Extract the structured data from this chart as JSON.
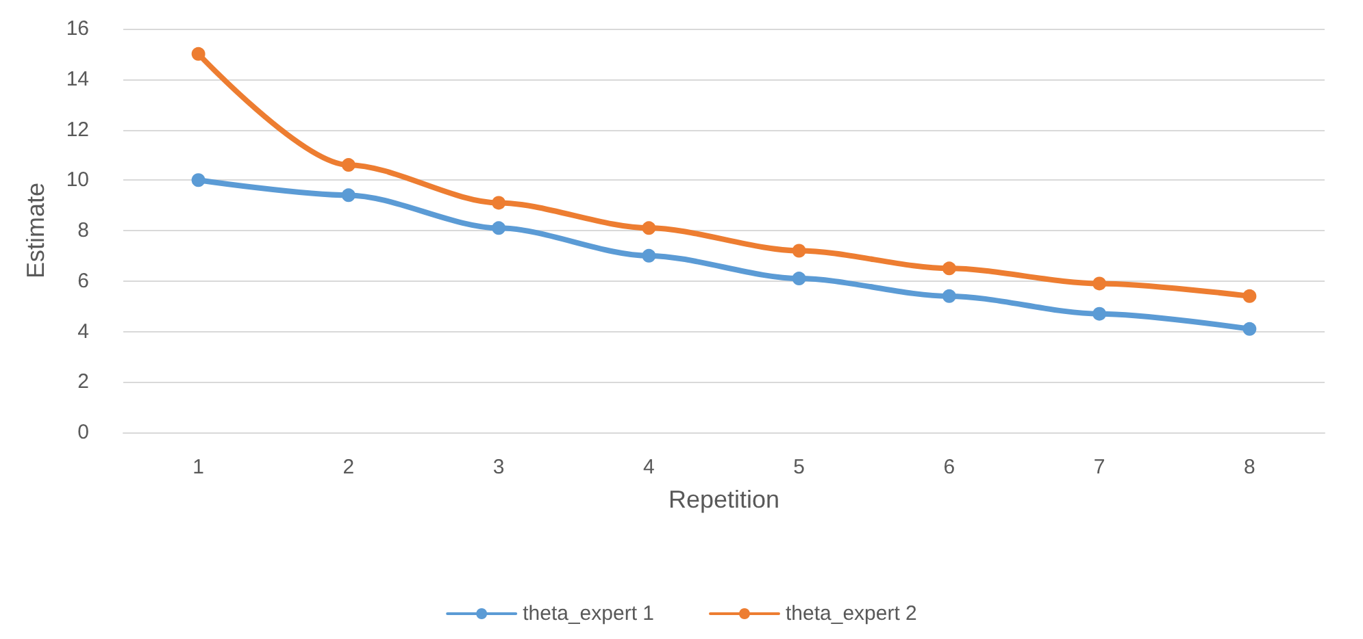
{
  "chart_data": {
    "type": "line",
    "xlabel": "Repetition",
    "ylabel": "Estimate",
    "categories": [
      "1",
      "2",
      "3",
      "4",
      "5",
      "6",
      "7",
      "8"
    ],
    "series": [
      {
        "name": "theta_expert 1",
        "color": "#5b9bd5",
        "values": [
          10.0,
          9.4,
          8.1,
          7.0,
          6.1,
          5.4,
          4.7,
          4.1
        ]
      },
      {
        "name": "theta_expert 2",
        "color": "#ed7d31",
        "values": [
          15.0,
          10.6,
          9.1,
          8.1,
          7.2,
          6.5,
          5.9,
          5.4
        ]
      }
    ],
    "ylim": [
      0,
      16
    ],
    "yticks": [
      0,
      2,
      4,
      6,
      8,
      10,
      12,
      14,
      16
    ],
    "grid": "y",
    "legend": "bottom",
    "marker": "circle",
    "line_style": "solid"
  }
}
